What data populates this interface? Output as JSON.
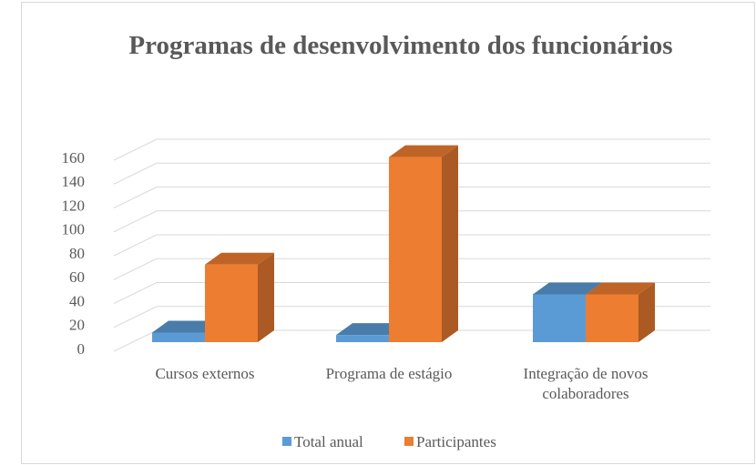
{
  "chart_data": {
    "type": "bar3d",
    "title": "Programas de desenvolvimento dos funcionários",
    "categories": [
      "Cursos externos",
      "Programa de estágio",
      "Integração de novos colaboradores"
    ],
    "series": [
      {
        "name": "Total anual",
        "color": "#5b9bd5",
        "values": [
          8,
          6,
          40
        ]
      },
      {
        "name": "Participantes",
        "color": "#ed7d31",
        "values": [
          65,
          155,
          40
        ]
      }
    ],
    "ylim": [
      0,
      160
    ],
    "yticks": [
      0,
      20,
      40,
      60,
      80,
      100,
      120,
      140,
      160
    ],
    "grid": true,
    "legend": "bottom"
  }
}
